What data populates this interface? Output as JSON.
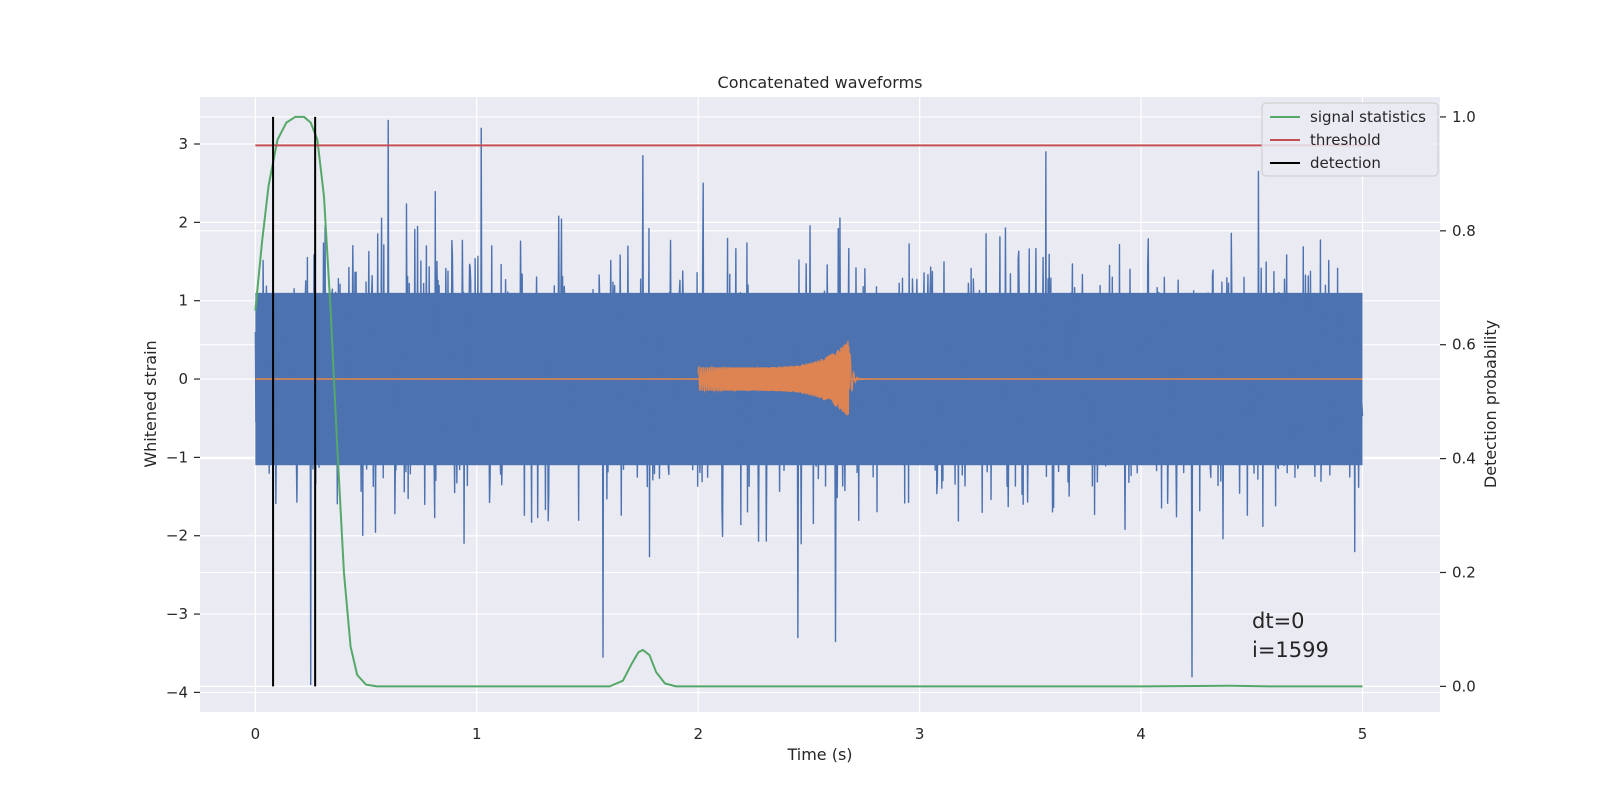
{
  "chart_data": {
    "type": "line",
    "title": "Concatenated waveforms",
    "xlabel": "Time (s)",
    "ylabel": "Whitened strain",
    "y2label": "Detection probability",
    "xlim": [
      -0.25,
      5.35
    ],
    "ylim": [
      -4.25,
      3.6
    ],
    "y2lim": [
      -0.045,
      1.035
    ],
    "x_ticks": [
      0,
      1,
      2,
      3,
      4,
      5
    ],
    "x_tick_labels": [
      "0",
      "1",
      "2",
      "3",
      "4",
      "5"
    ],
    "y_ticks": [
      -4,
      -3,
      -2,
      -1,
      0,
      1,
      2,
      3
    ],
    "y_tick_labels": [
      "−4",
      "−3",
      "−2",
      "−1",
      "0",
      "1",
      "2",
      "3"
    ],
    "y2_ticks": [
      0.0,
      0.2,
      0.4,
      0.6,
      0.8,
      1.0
    ],
    "y2_tick_labels": [
      "0.0",
      "0.2",
      "0.4",
      "0.6",
      "0.8",
      "1.0"
    ],
    "grid": true,
    "legend_position": "top-right",
    "series": [
      {
        "name": "",
        "kind": "noise",
        "axis": "left",
        "color": "#4c72b0",
        "x_range": [
          0,
          5
        ],
        "typical_band": [
          -1.1,
          1.1
        ],
        "spikes_up": [
          [
            0.6,
            3.3
          ],
          [
            1.02,
            3.2
          ],
          [
            1.75,
            2.85
          ],
          [
            3.57,
            2.9
          ],
          [
            4.53,
            2.65
          ]
        ],
        "spikes_down": [
          [
            0.25,
            -3.9
          ],
          [
            1.57,
            -3.55
          ],
          [
            2.45,
            -3.3
          ],
          [
            2.62,
            -3.35
          ],
          [
            4.23,
            -3.8
          ]
        ]
      },
      {
        "name": "",
        "kind": "chirp",
        "axis": "left",
        "color": "#dd8452",
        "x_range": [
          0,
          5
        ],
        "chirp_start": 2.0,
        "chirp_end": 2.68,
        "start_amplitude": 0.15,
        "peak_amplitude": 0.5
      },
      {
        "name": "signal statistics",
        "axis": "right",
        "color": "#55a868",
        "x": [
          0,
          0.03,
          0.06,
          0.1,
          0.14,
          0.18,
          0.22,
          0.25,
          0.28,
          0.31,
          0.34,
          0.37,
          0.4,
          0.43,
          0.46,
          0.5,
          0.55,
          1.0,
          1.6,
          1.66,
          1.7,
          1.73,
          1.75,
          1.78,
          1.81,
          1.85,
          1.9,
          2.5,
          4.0,
          4.4,
          4.6,
          5.0
        ],
        "values": [
          0.66,
          0.78,
          0.88,
          0.96,
          0.99,
          1.0,
          1.0,
          0.99,
          0.96,
          0.86,
          0.66,
          0.42,
          0.2,
          0.07,
          0.02,
          0.003,
          0.0,
          0.0,
          0.0,
          0.01,
          0.04,
          0.06,
          0.064,
          0.055,
          0.025,
          0.005,
          0.0,
          0.0,
          0.0,
          0.001,
          0.0,
          0.0
        ]
      },
      {
        "name": "threshold",
        "axis": "right",
        "color": "#c44e52",
        "x": [
          0,
          5.05
        ],
        "values": [
          0.95,
          0.95
        ]
      },
      {
        "name": "detection",
        "axis": "right",
        "color": "#000000",
        "vertical_lines": [
          0.08,
          0.27
        ],
        "y2_span": [
          0.0,
          1.0
        ]
      }
    ],
    "annotations": [
      "dt=0",
      "i=1599"
    ]
  }
}
